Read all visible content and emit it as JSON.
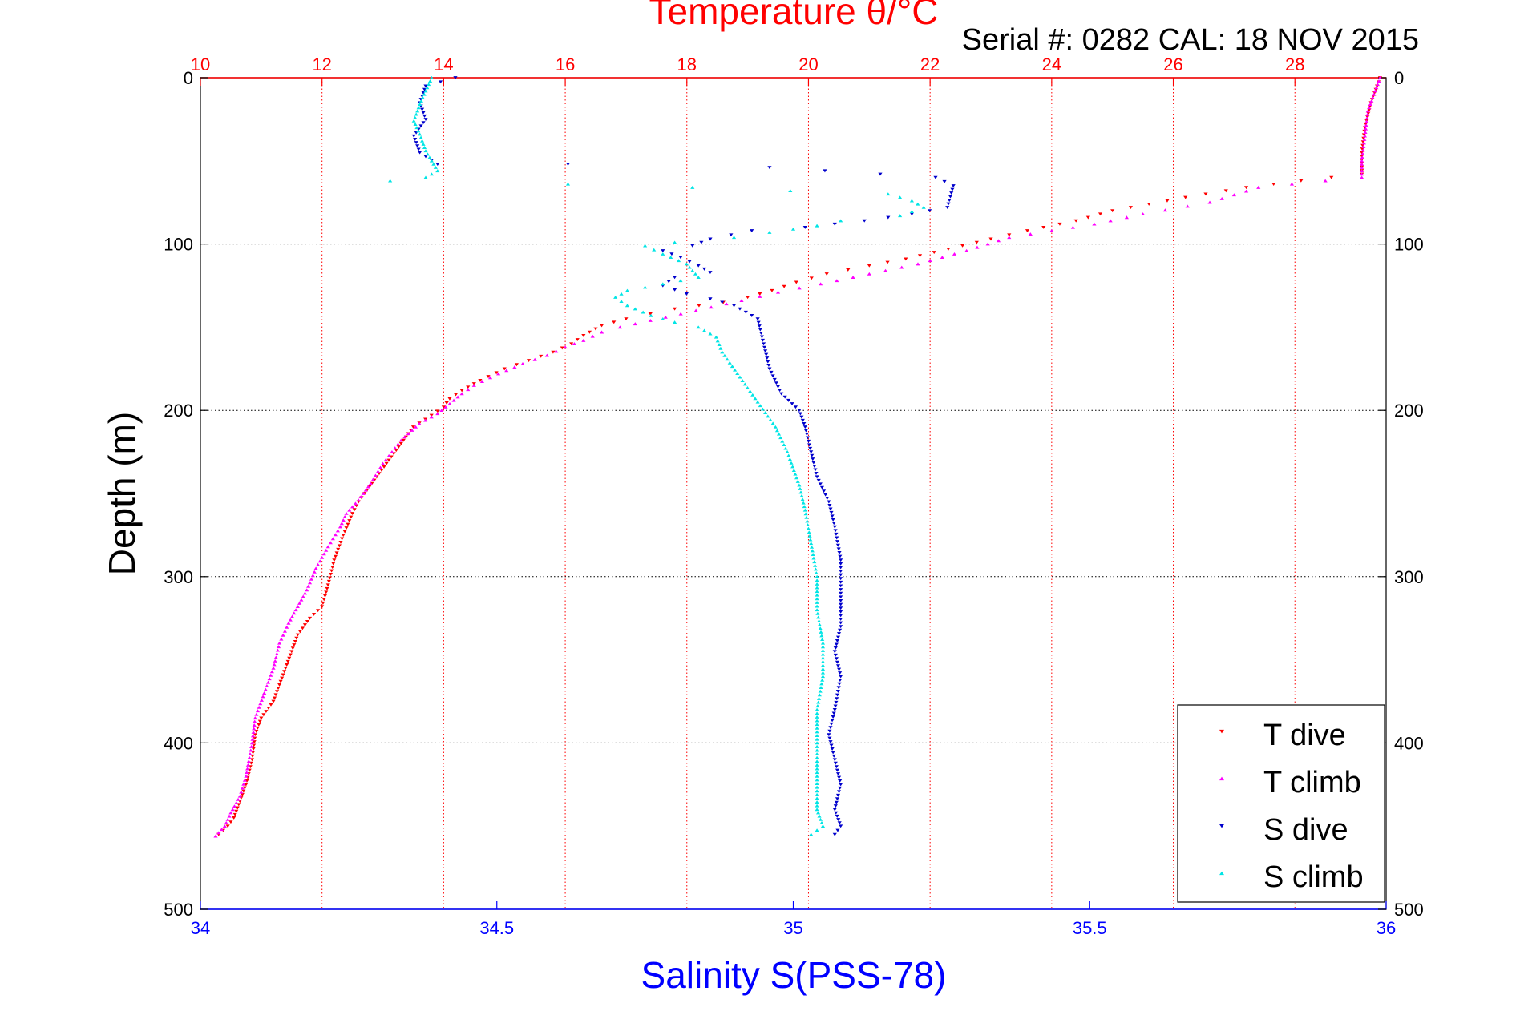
{
  "serial_label": "Serial #: 0282  CAL: 18 NOV 2015",
  "colors": {
    "temperature_axis": "#ff0000",
    "salinity_axis": "#0000ff",
    "t_dive": "#ff0000",
    "t_climb": "#ff00ff",
    "s_dive": "#0000cc",
    "s_climb": "#00e5e5",
    "grid_temperature": "#ff0000",
    "grid_depth": "#000000"
  },
  "chart_data": {
    "type": "scatter",
    "grid": true,
    "legend_position": "bottom-right",
    "y_axis": {
      "label": "Depth (m)",
      "range": [
        0,
        500
      ],
      "reversed": true,
      "ticks": [
        0,
        100,
        200,
        300,
        400,
        500
      ]
    },
    "top_axis": {
      "label": "Temperature θ/°C",
      "range": [
        10,
        29.5
      ],
      "ticks": [
        10,
        12,
        14,
        16,
        18,
        20,
        22,
        24,
        26,
        28
      ]
    },
    "bottom_axis": {
      "label": "Salinity S(PSS-78)",
      "range": [
        34,
        36
      ],
      "ticks": [
        34,
        34.5,
        35,
        35.5,
        36
      ]
    },
    "series": [
      {
        "name": "T dive",
        "axis": "temperature",
        "marker": "down-triangle",
        "points": [
          [
            29.4,
            0
          ],
          [
            29.35,
            5
          ],
          [
            29.25,
            15
          ],
          [
            29.15,
            30
          ],
          [
            29.1,
            45
          ],
          [
            29.1,
            58
          ],
          [
            28.1,
            62
          ],
          [
            27.2,
            66
          ],
          [
            26.2,
            72
          ],
          [
            25.0,
            80
          ],
          [
            24.4,
            86
          ],
          [
            23.6,
            92
          ],
          [
            23.0,
            97
          ],
          [
            22.3,
            103
          ],
          [
            21.6,
            109
          ],
          [
            21.0,
            113
          ],
          [
            20.3,
            118
          ],
          [
            19.8,
            123
          ],
          [
            19.4,
            128
          ],
          [
            19.0,
            132
          ],
          [
            18.6,
            135
          ],
          [
            18.2,
            137
          ],
          [
            17.8,
            139
          ],
          [
            17.4,
            142
          ],
          [
            17.0,
            145
          ],
          [
            16.6,
            149
          ],
          [
            16.3,
            155
          ],
          [
            16.1,
            160
          ],
          [
            15.8,
            165
          ],
          [
            15.4,
            170
          ],
          [
            15.0,
            175
          ],
          [
            14.6,
            182
          ],
          [
            14.3,
            188
          ],
          [
            14.1,
            193
          ],
          [
            14.0,
            198
          ],
          [
            13.8,
            203
          ],
          [
            13.5,
            210
          ],
          [
            13.3,
            220
          ],
          [
            13.1,
            230
          ],
          [
            12.9,
            240
          ],
          [
            12.7,
            250
          ],
          [
            12.6,
            255
          ],
          [
            12.5,
            262
          ],
          [
            12.35,
            275
          ],
          [
            12.2,
            290
          ],
          [
            12.1,
            305
          ],
          [
            12.0,
            318
          ],
          [
            11.8,
            325
          ],
          [
            11.6,
            335
          ],
          [
            11.5,
            345
          ],
          [
            11.4,
            355
          ],
          [
            11.3,
            365
          ],
          [
            11.2,
            375
          ],
          [
            11.0,
            385
          ],
          [
            10.9,
            395
          ],
          [
            10.85,
            410
          ],
          [
            10.75,
            425
          ],
          [
            10.65,
            435
          ],
          [
            10.55,
            445
          ],
          [
            10.45,
            450
          ],
          [
            10.3,
            455
          ]
        ]
      },
      {
        "name": "T climb",
        "axis": "temperature",
        "marker": "up-triangle",
        "points": [
          [
            29.4,
            0
          ],
          [
            29.3,
            10
          ],
          [
            29.2,
            20
          ],
          [
            29.15,
            35
          ],
          [
            29.1,
            50
          ],
          [
            29.1,
            60
          ],
          [
            28.5,
            62
          ],
          [
            27.4,
            66
          ],
          [
            26.6,
            75
          ],
          [
            25.5,
            82
          ],
          [
            24.7,
            88
          ],
          [
            24.0,
            92
          ],
          [
            23.3,
            96
          ],
          [
            22.6,
            104
          ],
          [
            21.8,
            112
          ],
          [
            21.0,
            118
          ],
          [
            20.2,
            124
          ],
          [
            19.5,
            129
          ],
          [
            18.9,
            134
          ],
          [
            18.4,
            138
          ],
          [
            17.9,
            142
          ],
          [
            17.4,
            146
          ],
          [
            16.9,
            150
          ],
          [
            16.6,
            153
          ],
          [
            16.3,
            158
          ],
          [
            16.0,
            162
          ],
          [
            15.7,
            167
          ],
          [
            15.3,
            172
          ],
          [
            14.9,
            178
          ],
          [
            14.5,
            185
          ],
          [
            14.3,
            190
          ],
          [
            14.1,
            196
          ],
          [
            13.9,
            202
          ],
          [
            13.6,
            208
          ],
          [
            13.3,
            218
          ],
          [
            13.0,
            232
          ],
          [
            12.8,
            244
          ],
          [
            12.6,
            254
          ],
          [
            12.4,
            262
          ],
          [
            12.3,
            270
          ],
          [
            12.1,
            282
          ],
          [
            11.9,
            295
          ],
          [
            11.75,
            308
          ],
          [
            11.6,
            318
          ],
          [
            11.45,
            328
          ],
          [
            11.3,
            340
          ],
          [
            11.2,
            355
          ],
          [
            11.05,
            370
          ],
          [
            10.9,
            385
          ],
          [
            10.85,
            400
          ],
          [
            10.75,
            420
          ],
          [
            10.65,
            432
          ],
          [
            10.5,
            442
          ],
          [
            10.4,
            450
          ],
          [
            10.25,
            456
          ]
        ]
      },
      {
        "name": "S dive",
        "axis": "salinity",
        "marker": "down-triangle",
        "points": [
          [
            34.43,
            0
          ],
          [
            34.38,
            5
          ],
          [
            34.37,
            15
          ],
          [
            34.38,
            25
          ],
          [
            34.36,
            35
          ],
          [
            34.37,
            45
          ],
          [
            34.4,
            52
          ],
          [
            34.62,
            52
          ],
          [
            34.96,
            54
          ],
          [
            35.24,
            60
          ],
          [
            35.27,
            65
          ],
          [
            35.26,
            78
          ],
          [
            35.2,
            82
          ],
          [
            35.12,
            86
          ],
          [
            35.02,
            90
          ],
          [
            34.93,
            92
          ],
          [
            34.86,
            97
          ],
          [
            34.83,
            101
          ],
          [
            34.78,
            104
          ],
          [
            34.81,
            108
          ],
          [
            34.84,
            113
          ],
          [
            34.86,
            117
          ],
          [
            34.8,
            120
          ],
          [
            34.78,
            125
          ],
          [
            34.82,
            130
          ],
          [
            34.86,
            133
          ],
          [
            34.9,
            137
          ],
          [
            34.94,
            145
          ],
          [
            34.95,
            160
          ],
          [
            34.96,
            175
          ],
          [
            34.98,
            190
          ],
          [
            35.01,
            200
          ],
          [
            35.02,
            210
          ],
          [
            35.03,
            225
          ],
          [
            35.04,
            240
          ],
          [
            35.06,
            255
          ],
          [
            35.07,
            270
          ],
          [
            35.08,
            290
          ],
          [
            35.08,
            310
          ],
          [
            35.08,
            330
          ],
          [
            35.07,
            345
          ],
          [
            35.08,
            360
          ],
          [
            35.07,
            380
          ],
          [
            35.06,
            395
          ],
          [
            35.07,
            410
          ],
          [
            35.08,
            425
          ],
          [
            35.07,
            440
          ],
          [
            35.08,
            450
          ],
          [
            35.07,
            455
          ]
        ]
      },
      {
        "name": "S climb",
        "axis": "salinity",
        "marker": "up-triangle",
        "points": [
          [
            34.39,
            0
          ],
          [
            34.38,
            8
          ],
          [
            34.37,
            16
          ],
          [
            34.36,
            26
          ],
          [
            34.37,
            34
          ],
          [
            34.38,
            44
          ],
          [
            34.39,
            50
          ],
          [
            34.4,
            56
          ],
          [
            34.38,
            60
          ],
          [
            34.32,
            62
          ],
          [
            34.62,
            64
          ],
          [
            34.83,
            66
          ],
          [
            35.16,
            70
          ],
          [
            35.2,
            74
          ],
          [
            35.22,
            78
          ],
          [
            35.18,
            83
          ],
          [
            35.08,
            86
          ],
          [
            35.04,
            89
          ],
          [
            34.96,
            93
          ],
          [
            34.9,
            96
          ],
          [
            34.8,
            99
          ],
          [
            34.75,
            101
          ],
          [
            34.78,
            106
          ],
          [
            34.82,
            112
          ],
          [
            34.84,
            120
          ],
          [
            34.78,
            124
          ],
          [
            34.72,
            128
          ],
          [
            34.7,
            132
          ],
          [
            34.72,
            137
          ],
          [
            34.76,
            143
          ],
          [
            34.8,
            147
          ],
          [
            34.84,
            150
          ],
          [
            34.87,
            156
          ],
          [
            34.88,
            165
          ],
          [
            34.91,
            180
          ],
          [
            34.94,
            195
          ],
          [
            34.97,
            210
          ],
          [
            34.99,
            225
          ],
          [
            35.01,
            245
          ],
          [
            35.02,
            260
          ],
          [
            35.03,
            280
          ],
          [
            35.04,
            300
          ],
          [
            35.04,
            320
          ],
          [
            35.05,
            340
          ],
          [
            35.05,
            360
          ],
          [
            35.04,
            380
          ],
          [
            35.04,
            400
          ],
          [
            35.04,
            420
          ],
          [
            35.04,
            440
          ],
          [
            35.05,
            450
          ],
          [
            35.03,
            455
          ]
        ]
      }
    ],
    "legend": [
      "T dive",
      "T climb",
      "S dive",
      "S climb"
    ]
  }
}
